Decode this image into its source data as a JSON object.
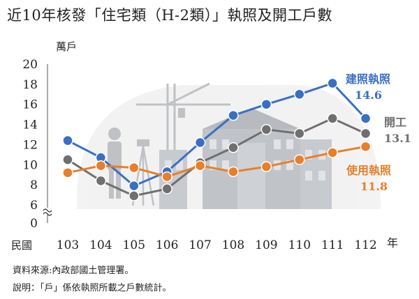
{
  "title": "近10年核發「住宅類（H-2類）」執照及開工戶數",
  "notes": {
    "source": "資料來源:內政部國土管理署。",
    "explain": "說明：「戶」係依執照所載之戶數統計。"
  },
  "chart_data": {
    "type": "line",
    "title": "近10年核發「住宅類（H-2類）」執照及開工戶數",
    "ylabel": "萬戶",
    "x_prefix": "民國",
    "x_suffix": "年",
    "categories": [
      "103",
      "104",
      "105",
      "106",
      "107",
      "108",
      "109",
      "110",
      "111",
      "112"
    ],
    "yticks": [
      "0",
      "6",
      "8",
      "10",
      "12",
      "14",
      "16",
      "18",
      "20"
    ],
    "ylim": [
      6,
      20
    ],
    "axis_break": true,
    "grid": false,
    "series": [
      {
        "name": "建照執照",
        "color": "#3a6fc4",
        "values": [
          12.4,
          10.7,
          7.9,
          9.3,
          12.2,
          14.9,
          16.0,
          17.0,
          18.1,
          14.6
        ],
        "last_label": "14.6"
      },
      {
        "name": "開工",
        "color": "#6f6f6f",
        "values": [
          10.5,
          8.4,
          6.9,
          7.6,
          10.2,
          11.7,
          13.5,
          13.1,
          14.6,
          13.1
        ],
        "last_label": "13.1"
      },
      {
        "name": "使用執照",
        "color": "#e87f2a",
        "values": [
          9.2,
          9.9,
          9.7,
          8.8,
          9.9,
          9.3,
          9.8,
          10.5,
          11.2,
          11.8
        ],
        "last_label": "11.8"
      }
    ]
  }
}
